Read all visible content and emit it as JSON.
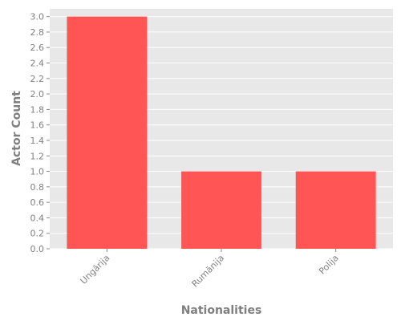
{
  "chart_data": {
    "type": "bar",
    "categories": [
      "Ungārija",
      "Rumānija",
      "Polija"
    ],
    "values": [
      3.0,
      1.0,
      1.0
    ],
    "title": "",
    "xlabel": "Nationalities",
    "ylabel": "Actor Count",
    "ylim": [
      0,
      3.1
    ],
    "yticks": [
      "0.0",
      "0.2",
      "0.4",
      "0.6",
      "0.8",
      "1.0",
      "1.2",
      "1.4",
      "1.6",
      "1.8",
      "2.0",
      "2.2",
      "2.4",
      "2.6",
      "2.8",
      "3.0"
    ],
    "grid": true,
    "legend": "none",
    "colors": {
      "bar": "#ff5555",
      "plot_background": "#e8e8e8",
      "grid": "#ffffff",
      "text": "#7f7f7f"
    }
  }
}
